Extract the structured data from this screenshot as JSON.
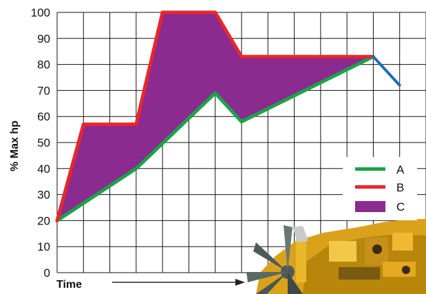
{
  "chart_data": {
    "type": "line",
    "ylabel": "% Max hp",
    "xlabel": "Time",
    "ylim": [
      0,
      100
    ],
    "yticks": [
      "0",
      "10",
      "20",
      "30",
      "40",
      "50",
      "60",
      "70",
      "80",
      "90",
      "100"
    ],
    "x_steps": 14,
    "grid": true,
    "legend_position": "right",
    "series": [
      {
        "name": "A",
        "color": "#1aa34a",
        "x": [
          0,
          3,
          6,
          7,
          12
        ],
        "values": [
          20,
          40,
          69,
          58,
          83
        ]
      },
      {
        "name": "B",
        "color": "#e8262b",
        "x": [
          0,
          1,
          3,
          4,
          6,
          7,
          12
        ],
        "values": [
          20,
          57,
          57,
          100,
          100,
          83,
          83
        ]
      },
      {
        "name": "C",
        "color": "#8b2a8f",
        "kind": "area",
        "between": [
          "A",
          "B"
        ]
      }
    ],
    "extension": {
      "color": "#1b6eb5",
      "x": [
        12,
        13
      ],
      "values": [
        83,
        72
      ]
    }
  },
  "decoration": {
    "image": "engine-photo"
  }
}
